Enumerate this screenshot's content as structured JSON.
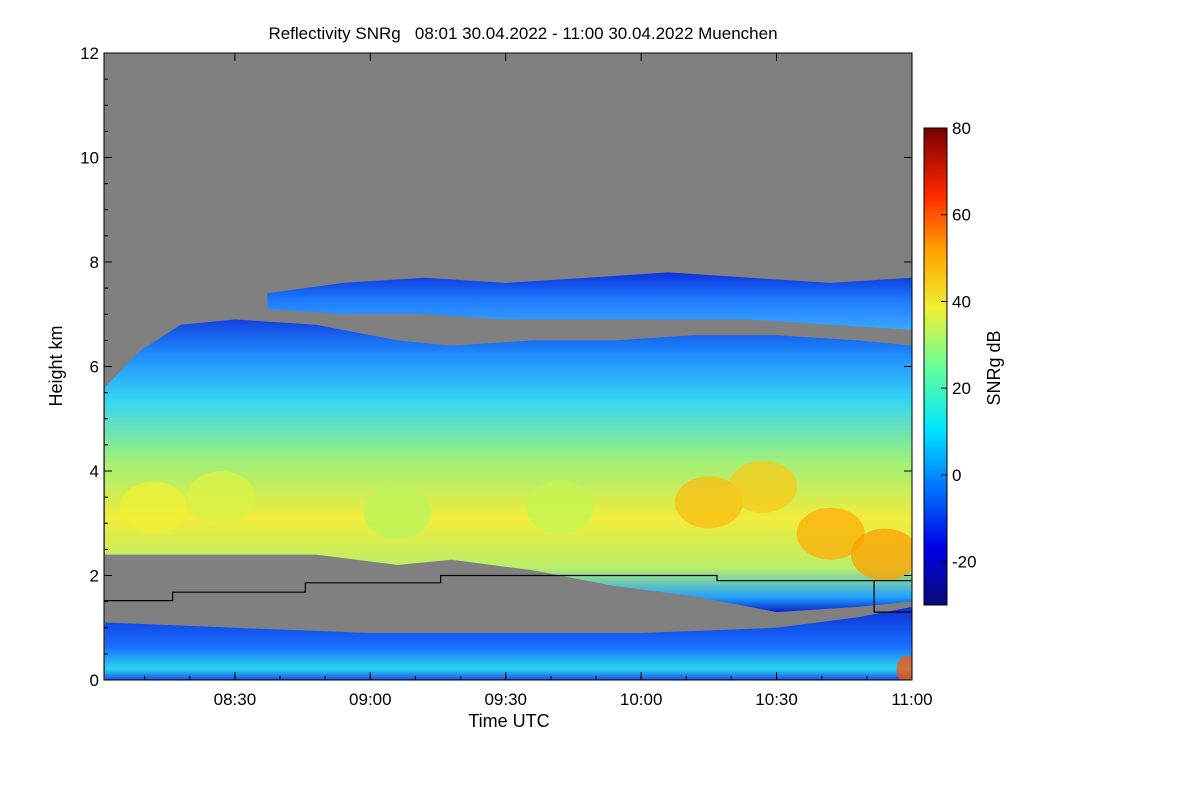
{
  "chart_data": {
    "type": "heatmap",
    "title": "Reflectivity SNRg   08:01 30.04.2022 - 11:00 30.04.2022 Muenchen",
    "xlabel": "Time UTC",
    "ylabel": "Height km",
    "x_range_hours": [
      8.0167,
      11.0
    ],
    "y_range_km": [
      0,
      12
    ],
    "x_ticks": [
      {
        "label": "08:30",
        "value": 8.5
      },
      {
        "label": "09:00",
        "value": 9.0
      },
      {
        "label": "09:30",
        "value": 9.5
      },
      {
        "label": "10:00",
        "value": 10.0
      },
      {
        "label": "10:30",
        "value": 10.5
      },
      {
        "label": "11:00",
        "value": 11.0
      }
    ],
    "y_ticks": [
      {
        "label": "0",
        "value": 0
      },
      {
        "label": "2",
        "value": 2
      },
      {
        "label": "4",
        "value": 4
      },
      {
        "label": "6",
        "value": 6
      },
      {
        "label": "8",
        "value": 8
      },
      {
        "label": "10",
        "value": 10
      },
      {
        "label": "12",
        "value": 12
      }
    ],
    "colorbar": {
      "label": "SNRg dB",
      "range": [
        -30,
        80
      ],
      "ticks": [
        {
          "label": "-20",
          "value": -20
        },
        {
          "label": "0",
          "value": 0
        },
        {
          "label": "20",
          "value": 20
        },
        {
          "label": "40",
          "value": 40
        },
        {
          "label": "60",
          "value": 60
        },
        {
          "label": "80",
          "value": 80
        }
      ]
    },
    "no_signal_color": "#808080",
    "layers": [
      {
        "name": "upper-cloud-layer",
        "x": [
          8.62,
          8.9,
          9.2,
          9.5,
          9.8,
          10.1,
          10.4,
          10.7,
          11.0
        ],
        "top": [
          7.4,
          7.6,
          7.7,
          7.6,
          7.7,
          7.8,
          7.7,
          7.6,
          7.7
        ],
        "base": [
          7.1,
          7.0,
          7.0,
          6.9,
          6.9,
          6.9,
          6.9,
          6.8,
          6.7
        ]
      },
      {
        "name": "main-precipitation-layer",
        "x": [
          8.02,
          8.15,
          8.3,
          8.5,
          8.8,
          9.1,
          9.3,
          9.6,
          9.9,
          10.2,
          10.5,
          10.8,
          11.0
        ],
        "top": [
          5.6,
          6.3,
          6.8,
          6.9,
          6.8,
          6.5,
          6.4,
          6.5,
          6.5,
          6.6,
          6.6,
          6.5,
          6.4
        ],
        "base": [
          2.4,
          2.4,
          2.4,
          2.4,
          2.4,
          2.2,
          2.3,
          2.1,
          1.8,
          1.6,
          1.3,
          1.4,
          1.5
        ]
      },
      {
        "name": "boundary-layer-clutter",
        "x": [
          8.02,
          8.5,
          9.0,
          9.5,
          10.0,
          10.5,
          10.8,
          11.0
        ],
        "top": [
          1.1,
          1.0,
          0.9,
          0.9,
          0.9,
          1.0,
          1.2,
          1.4
        ],
        "base": [
          0.0,
          0.0,
          0.0,
          0.0,
          0.0,
          0.0,
          0.0,
          0.0
        ]
      }
    ],
    "cores": [
      {
        "time": 8.2,
        "height": 3.3,
        "snr": 38
      },
      {
        "time": 8.45,
        "height": 3.5,
        "snr": 36
      },
      {
        "time": 9.1,
        "height": 3.2,
        "snr": 33
      },
      {
        "time": 9.7,
        "height": 3.3,
        "snr": 34
      },
      {
        "time": 10.25,
        "height": 3.4,
        "snr": 47
      },
      {
        "time": 10.45,
        "height": 3.7,
        "snr": 45
      },
      {
        "time": 10.7,
        "height": 2.8,
        "snr": 50
      },
      {
        "time": 10.9,
        "height": 2.4,
        "snr": 52
      },
      {
        "time": 10.98,
        "height": 0.2,
        "snr": 60
      }
    ],
    "height_line": {
      "name": "cloud-base-step-line",
      "points": [
        [
          8.0167,
          1.52
        ],
        [
          8.27,
          1.52
        ],
        [
          8.27,
          1.68
        ],
        [
          8.76,
          1.68
        ],
        [
          8.76,
          1.86
        ],
        [
          9.26,
          1.86
        ],
        [
          9.26,
          2.0
        ],
        [
          10.28,
          2.0
        ],
        [
          10.28,
          1.9
        ],
        [
          11.0,
          1.9
        ]
      ],
      "secondary": [
        [
          10.86,
          1.9
        ],
        [
          10.86,
          1.3
        ],
        [
          11.0,
          1.3
        ]
      ]
    }
  }
}
